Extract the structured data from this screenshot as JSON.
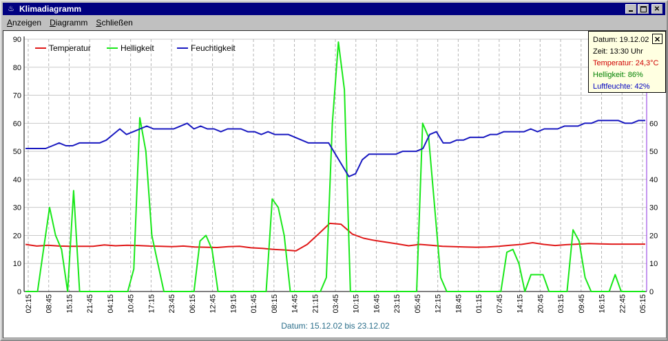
{
  "window": {
    "title": "Klimadiagramm",
    "icon": "thermometer-icon"
  },
  "menu": [
    {
      "key": "anzeigen",
      "first": "A",
      "rest": "nzeigen"
    },
    {
      "key": "diagramm",
      "first": "D",
      "rest": "iagramm"
    },
    {
      "key": "schliessen",
      "first": "S",
      "rest": "chließen"
    }
  ],
  "legend": [
    "Temperatur",
    "Helligkeit",
    "Feuchtigkeit"
  ],
  "footer": "Datum: 15.12.02 bis 23.12.02",
  "info": {
    "datum": "Datum: 19.12.02",
    "zeit": "Zeit: 13:30 Uhr",
    "temperatur": "Temperatur: 24,3°C",
    "helligkeit": "Helligkeit: 86%",
    "luftfeuchte": "Luftfeuchte: 42%"
  },
  "colors": {
    "temperatur": "#e01818",
    "helligkeit": "#18e818",
    "feuchtigkeit": "#1818c0",
    "right_axis": "#8a2be2",
    "footer": "#2a6e8a",
    "title_bar": "#000080"
  },
  "chart_data": {
    "type": "line",
    "ylim": [
      0,
      90
    ],
    "y_ticks": [
      0,
      10,
      20,
      30,
      40,
      50,
      60,
      70,
      80,
      90
    ],
    "y_ticks_right": [
      0,
      10,
      20,
      30,
      40,
      50,
      60
    ],
    "x_ticks": [
      "02:15",
      "08:45",
      "15:15",
      "21:45",
      "04:15",
      "10:45",
      "17:15",
      "23:45",
      "06:15",
      "12:45",
      "19:15",
      "01:45",
      "08:15",
      "14:45",
      "21:15",
      "03:45",
      "10:15",
      "16:45",
      "23:15",
      "05:45",
      "12:15",
      "18:45",
      "01:15",
      "07:45",
      "14:15",
      "20:45",
      "03:15",
      "09:45",
      "16:15",
      "22:45",
      "05:15"
    ],
    "series": [
      {
        "name": "Temperatur",
        "color": "#e01818",
        "values": [
          16.8,
          16.2,
          16.5,
          16.2,
          16.1,
          16.1,
          16.1,
          16.6,
          16.3,
          16.5,
          16.4,
          16.2,
          16.1,
          16.0,
          16.2,
          15.9,
          15.8,
          15.7,
          16.0,
          16.1,
          15.6,
          15.4,
          15.0,
          14.8,
          14.5,
          16.8,
          20.5,
          24.3,
          24.0,
          20.5,
          19.0,
          18.2,
          17.6,
          17.0,
          16.3,
          16.8,
          16.5,
          16.1,
          16.0,
          15.9,
          15.8,
          15.9,
          16.1,
          16.5,
          16.8,
          17.4,
          16.8,
          16.4,
          16.7,
          16.9,
          17.1,
          17.0,
          16.9,
          16.9,
          16.9,
          16.9
        ]
      },
      {
        "name": "Helligkeit",
        "color": "#18e818",
        "values": [
          0,
          0,
          0,
          15,
          30,
          20,
          15,
          0,
          36,
          0,
          0,
          0,
          0,
          0,
          0,
          0,
          0,
          0,
          8,
          62,
          50,
          20,
          10,
          0,
          0,
          0,
          0,
          0,
          0,
          18,
          20,
          15,
          0,
          0,
          0,
          0,
          0,
          0,
          0,
          0,
          0,
          33,
          30,
          20,
          0,
          0,
          0,
          0,
          0,
          0,
          5,
          60,
          89,
          72,
          0,
          0,
          0,
          0,
          0,
          0,
          0,
          0,
          0,
          0,
          0,
          0,
          60,
          55,
          30,
          5,
          0,
          0,
          0,
          0,
          0,
          0,
          0,
          0,
          0,
          0,
          14,
          15,
          10,
          0,
          6,
          6,
          6,
          0,
          0,
          0,
          0,
          22,
          18,
          5,
          0,
          0,
          0,
          0,
          6,
          0,
          0,
          0,
          0,
          0
        ]
      },
      {
        "name": "Feuchtigkeit",
        "color": "#1818c0",
        "values": [
          51,
          51,
          51,
          51,
          52,
          53,
          52,
          52,
          53,
          53,
          53,
          53,
          54,
          56,
          58,
          56,
          57,
          58,
          59,
          58,
          58,
          58,
          58,
          59,
          60,
          58,
          59,
          58,
          58,
          57,
          58,
          58,
          58,
          57,
          57,
          56,
          57,
          56,
          56,
          56,
          55,
          54,
          53,
          53,
          53,
          53,
          49,
          45,
          41,
          42,
          47,
          49,
          49,
          49,
          49,
          49,
          50,
          50,
          50,
          51,
          56,
          57,
          53,
          53,
          54,
          54,
          55,
          55,
          55,
          56,
          56,
          57,
          57,
          57,
          57,
          58,
          57,
          58,
          58,
          58,
          59,
          59,
          59,
          60,
          60,
          61,
          61,
          61,
          61,
          60,
          60,
          61,
          61
        ]
      }
    ]
  }
}
